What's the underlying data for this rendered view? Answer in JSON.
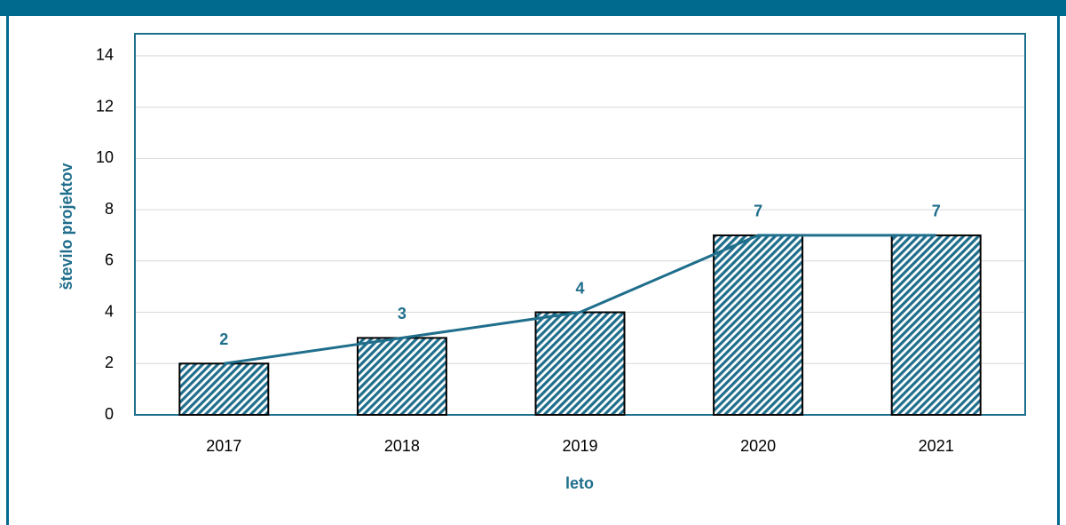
{
  "chart_data": {
    "type": "bar",
    "x_label": "leto",
    "y_label": "število projektov",
    "categories": [
      "2017",
      "2018",
      "2019",
      "2020",
      "2021"
    ],
    "values": [
      2,
      3,
      4,
      7,
      7
    ],
    "color": "#1f6e8c",
    "line_color": "#1f6e8c",
    "line": true,
    "ylim": [
      0,
      15
    ],
    "yticks": [
      0,
      2,
      4,
      6,
      8,
      10,
      12,
      14
    ],
    "grid": true
  }
}
